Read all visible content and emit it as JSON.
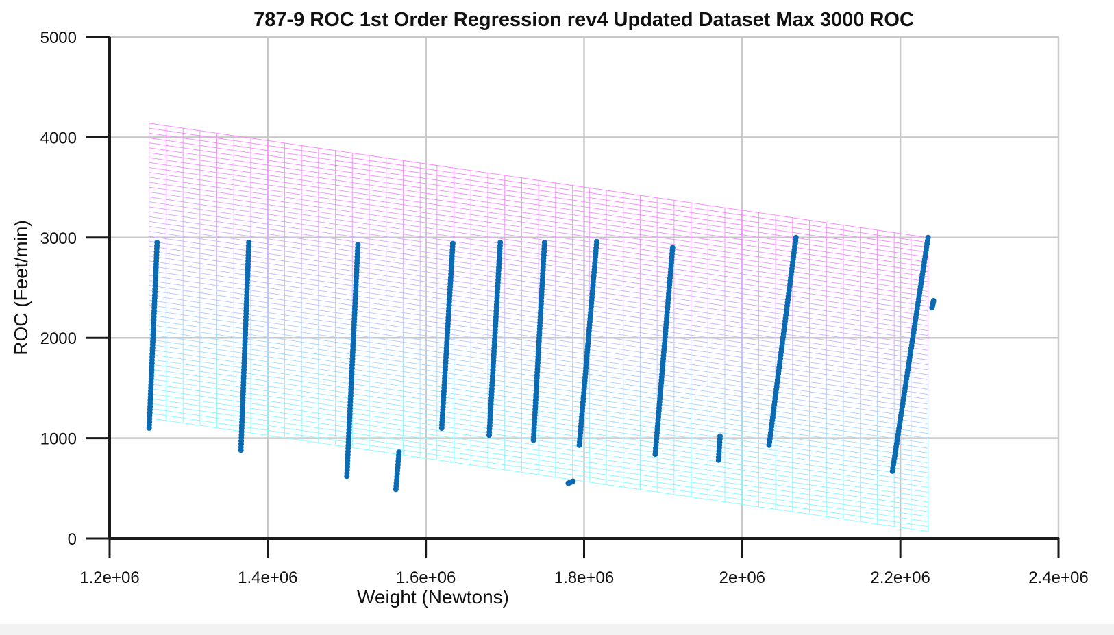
{
  "chart_data": {
    "type": "scatter",
    "title": "787-9 ROC 1st Order Regression rev4 Updated Dataset Max 3000 ROC",
    "xlabel": "Weight (Newtons)",
    "ylabel": "ROC (Feet/min)",
    "xlim": [
      1200000,
      2400000
    ],
    "ylim": [
      0,
      5000
    ],
    "xticks": [
      1200000,
      1400000,
      1600000,
      1800000,
      2000000,
      2200000,
      2400000
    ],
    "xtick_labels": [
      "1.2e+06",
      "1.4e+06",
      "1.6e+06",
      "1.8e+06",
      "2e+06",
      "2.2e+06",
      "2.4e+06"
    ],
    "yticks": [
      0,
      1000,
      2000,
      3000,
      4000,
      5000
    ],
    "ytick_labels": [
      "0",
      "1000",
      "2000",
      "3000",
      "4000",
      "5000"
    ],
    "grid": true,
    "regression_plane": {
      "x_range": [
        1250000,
        2235000
      ],
      "top_line": [
        [
          1250000,
          4140
        ],
        [
          2235000,
          3000
        ]
      ],
      "bottom_line": [
        [
          1250000,
          1200
        ],
        [
          2235000,
          70
        ]
      ],
      "color_top": "#ff88ff",
      "color_bottom": "#88ffff"
    },
    "point_color": "#0a6bb3",
    "series": [
      {
        "x0": 1250000,
        "x1": 1260000,
        "y0": 1100,
        "y1": 2950
      },
      {
        "x0": 1366000,
        "x1": 1376000,
        "y0": 880,
        "y1": 2950
      },
      {
        "x0": 1500000,
        "x1": 1514000,
        "y0": 620,
        "y1": 2930
      },
      {
        "x0": 1562000,
        "x1": 1566000,
        "y0": 490,
        "y1": 860
      },
      {
        "x0": 1620000,
        "x1": 1634000,
        "y0": 1100,
        "y1": 2940
      },
      {
        "x0": 1680000,
        "x1": 1694000,
        "y0": 1030,
        "y1": 2950
      },
      {
        "x0": 1736000,
        "x1": 1750000,
        "y0": 980,
        "y1": 2950
      },
      {
        "x0": 1780000,
        "x1": 1786000,
        "y0": 550,
        "y1": 570
      },
      {
        "x0": 1794000,
        "x1": 1816000,
        "y0": 930,
        "y1": 2960
      },
      {
        "x0": 1890000,
        "x1": 1912000,
        "y0": 840,
        "y1": 2900
      },
      {
        "x0": 1970000,
        "x1": 1972000,
        "y0": 780,
        "y1": 1020
      },
      {
        "x0": 2034000,
        "x1": 2068000,
        "y0": 930,
        "y1": 3000
      },
      {
        "x0": 2190000,
        "x1": 2235000,
        "y0": 670,
        "y1": 3000
      },
      {
        "x0": 2240000,
        "x1": 2242000,
        "y0": 2300,
        "y1": 2370
      }
    ]
  }
}
